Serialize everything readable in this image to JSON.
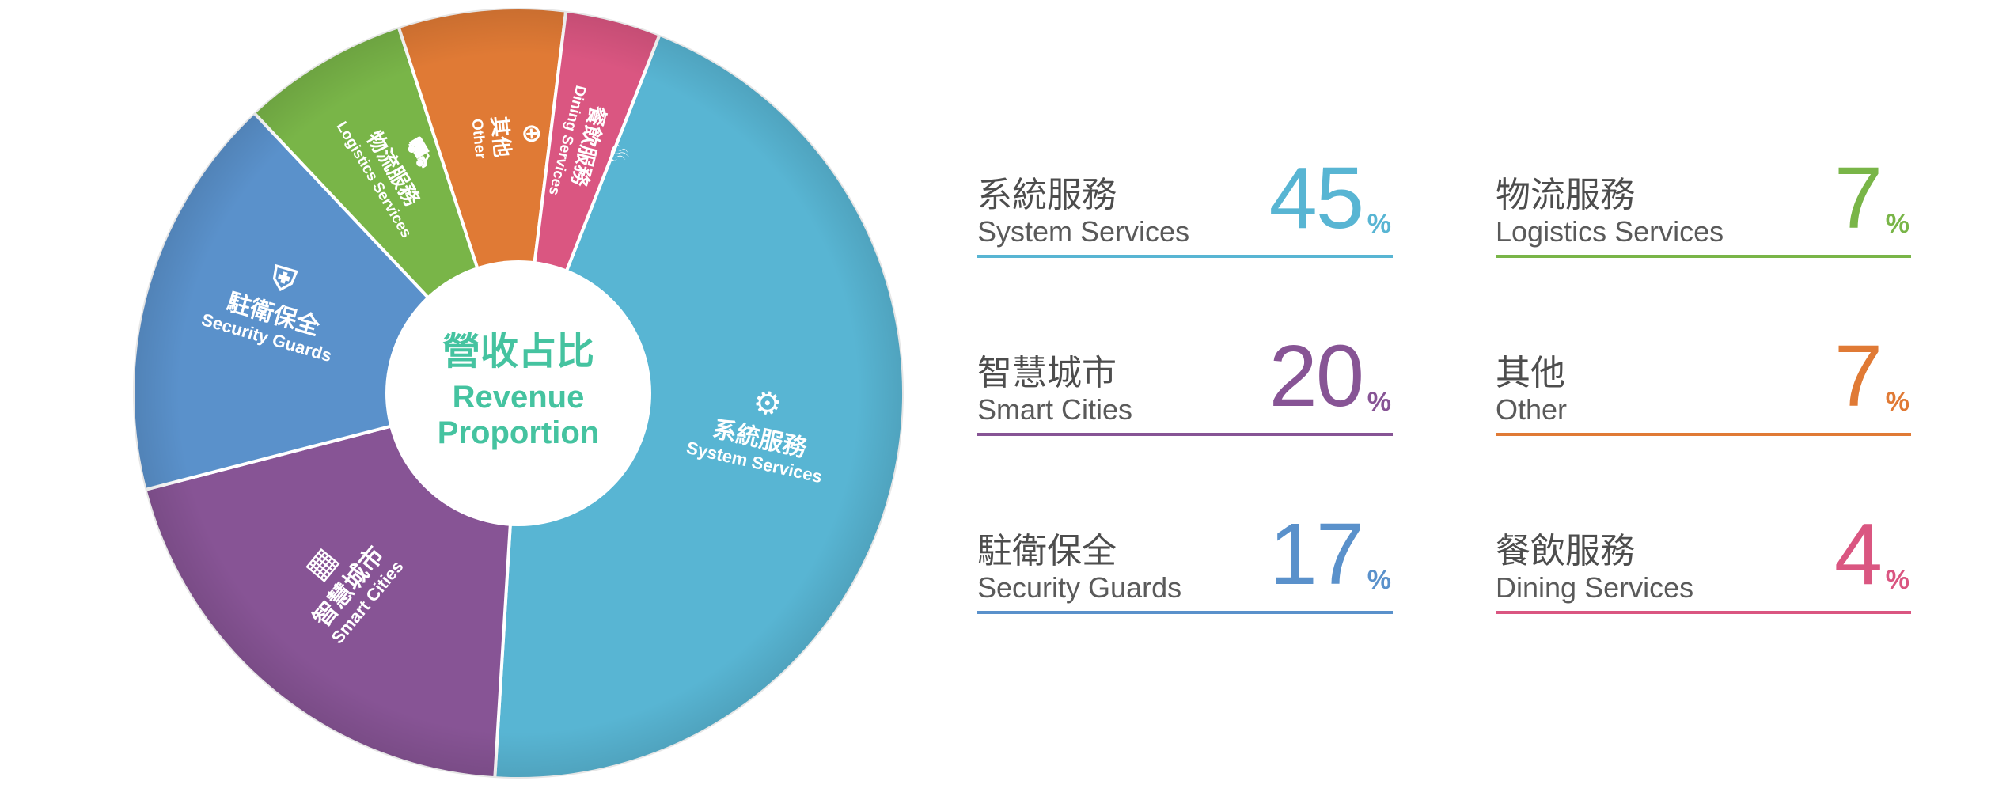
{
  "chart_data": {
    "type": "pie",
    "center_label": {
      "zh": "營收占比",
      "en_line1": "Revenue",
      "en_line2": "Proportion"
    },
    "segments": [
      {
        "id": "system",
        "zh": "系統服務",
        "en": "System Services",
        "value": 45,
        "color": "#58b5d3",
        "icon": "gears-icon"
      },
      {
        "id": "smart",
        "zh": "智慧城市",
        "en": "Smart Cities",
        "value": 20,
        "color": "#875495",
        "icon": "building-icon"
      },
      {
        "id": "security",
        "zh": "駐衛保全",
        "en": "Security Guards",
        "value": 17,
        "color": "#5a91cb",
        "icon": "shield-icon"
      },
      {
        "id": "logistics",
        "zh": "物流服務",
        "en": "Logistics Services",
        "value": 7,
        "color": "#79b548",
        "icon": "truck-icon"
      },
      {
        "id": "other",
        "zh": "其他",
        "en": "Other",
        "value": 7,
        "color": "#e07a35",
        "icon": "plus-circle-icon"
      },
      {
        "id": "dining",
        "zh": "餐飲服務",
        "en": "Dining Services",
        "value": 4,
        "color": "#da5681",
        "icon": "utensils-icon"
      }
    ],
    "unit": "%"
  },
  "legend": [
    {
      "zh": "系統服務",
      "en": "System Services",
      "value": "45",
      "unit": "%",
      "color": "#58b5d3"
    },
    {
      "zh": "智慧城市",
      "en": "Smart Cities",
      "value": "20",
      "unit": "%",
      "color": "#875495"
    },
    {
      "zh": "駐衛保全",
      "en": "Security Guards",
      "value": "17",
      "unit": "%",
      "color": "#5a91cb"
    },
    {
      "zh": "物流服務",
      "en": "Logistics Services",
      "value": "7",
      "unit": "%",
      "color": "#79b548"
    },
    {
      "zh": "其他",
      "en": "Other",
      "value": "7",
      "unit": "%",
      "color": "#e07a35"
    },
    {
      "zh": "餐飲服務",
      "en": "Dining Services",
      "value": "4",
      "unit": "%",
      "color": "#da5681"
    }
  ]
}
